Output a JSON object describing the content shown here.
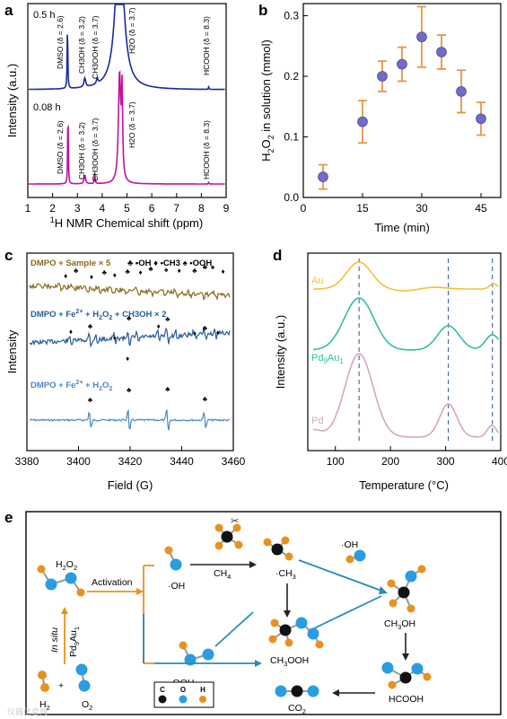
{
  "panels": {
    "a": "a",
    "b": "b",
    "c": "c",
    "d": "d",
    "e": "e"
  },
  "panel_a": {
    "ylabel": "Intensity (a.u.)",
    "xlabel_pre": "1",
    "xlabel_main": "H NMR Chemical shift (ppm)",
    "xticks": [
      "1",
      "2",
      "3",
      "4",
      "5",
      "6",
      "7",
      "8",
      "9"
    ],
    "traces": [
      {
        "name": "0.5 h",
        "color": "#1a2a9e",
        "peaks": [
          {
            "label": "DMSO (δ = 2.6)"
          },
          {
            "label": "CH3OH (δ = 3.2)"
          },
          {
            "label": "CH3OOH (δ = 3.7)"
          },
          {
            "label": "H2O (δ = 3.7)"
          },
          {
            "label": "HCOOH (δ = 8.3)"
          }
        ]
      },
      {
        "name": "0.08 h",
        "color": "#c5109e",
        "peaks": [
          {
            "label": "DMSO (δ = 2.6)"
          },
          {
            "label": "CH3OH (δ = 3.2)"
          },
          {
            "label": "CH3OOH (δ = 3.7)"
          },
          {
            "label": "H2O (δ = 3.7)"
          },
          {
            "label": "HCOOH (δ = 8.3)"
          }
        ]
      }
    ]
  },
  "chart_data": [
    {
      "type": "scatter",
      "panel": "b",
      "xlabel": "Time (min)",
      "ylabel": "H2O2 in solution (mmol)",
      "xlim": [
        0,
        50
      ],
      "ylim": [
        0,
        0.32
      ],
      "xticks": [
        "0",
        "15",
        "30",
        "45"
      ],
      "yticks": [
        "0.0",
        "0.1",
        "0.2",
        "0.3"
      ],
      "x": [
        5,
        15,
        20,
        25,
        30,
        35,
        40,
        45
      ],
      "y": [
        0.034,
        0.125,
        0.2,
        0.22,
        0.265,
        0.24,
        0.175,
        0.13
      ],
      "err": [
        0.02,
        0.035,
        0.025,
        0.028,
        0.05,
        0.028,
        0.035,
        0.027
      ],
      "marker_color": "#6f6cc6",
      "err_color": "#e8954a"
    },
    {
      "type": "line",
      "panel": "c",
      "xlabel": "Field (G)",
      "ylabel": "Intensity",
      "xlim": [
        3380,
        3460
      ],
      "xticks": [
        "3380",
        "3400",
        "3420",
        "3440",
        "3460"
      ],
      "series": [
        {
          "name": "DMPO + Sample × 5",
          "color": "#8a6a1e"
        },
        {
          "name": "DMPO + Fe2+ + H2O2 + CH3OH × 2",
          "color": "#2d5a9a"
        },
        {
          "name": "DMPO + Fe2+ + H2O2",
          "color": "#4a88c6"
        }
      ],
      "legend": [
        {
          "sym": "♣",
          "text": "•OH"
        },
        {
          "sym": "♦",
          "text": "•CH3"
        },
        {
          "sym": "♠",
          "text": "•OOH"
        }
      ]
    },
    {
      "type": "line",
      "panel": "d",
      "xlabel": "Temperature (°C)",
      "ylabel": "Intensity (a.u.)",
      "xlim": [
        50,
        400
      ],
      "xticks": [
        "100",
        "200",
        "300",
        "400"
      ],
      "peak_markers": [
        143,
        305,
        385
      ],
      "series": [
        {
          "name": "Au",
          "color": "#f0c23a"
        },
        {
          "name": "Pd9Au1",
          "color": "#2fbfa0"
        },
        {
          "name": "Pd",
          "color": "#d8a6ba"
        }
      ]
    }
  ],
  "panel_c_labels": {
    "s1": "DMPO + Sample × 5",
    "s2a": "DMPO + Fe",
    "s2b": " + H",
    "s2c": "O",
    "s2d": " + CH3OH × 2",
    "s3a": "DMPO + Fe",
    "s3b": " + H",
    "s3c": "O",
    "sup2p": "2+",
    "sub2": "2"
  },
  "panel_d_labels": {
    "au": "Au",
    "pd9": "Pd",
    "pd9b": "9",
    "pd9c": "Au",
    "pd9d": "1",
    "pd": "Pd"
  },
  "scheme": {
    "h2o2": "H",
    "h2o2_sub": "2",
    "h2o2_o": "O",
    "activation": "Activation",
    "oh": "·OH",
    "ooh": "·OOH",
    "ch4": "CH",
    "ch4_sub": "4",
    "ch3": "·CH",
    "ch3_sub": "3",
    "oh2": "·OH",
    "ch3oh": "CH3OH",
    "ch3ooh": "CH3OOH",
    "hcooh": "HCOOH",
    "co2": "CO",
    "co2_sub": "2",
    "insitu": "In situ",
    "cat": "Pd9Au1",
    "h2": "H",
    "h2_sub": "2",
    "o2": "O",
    "o2_sub": "2",
    "plus": "+",
    "legend": [
      "C",
      "O",
      "H"
    ],
    "colors": {
      "C": "#111111",
      "O": "#2a9de0",
      "H": "#e8921e"
    },
    "watermark": "仪器信息网"
  }
}
